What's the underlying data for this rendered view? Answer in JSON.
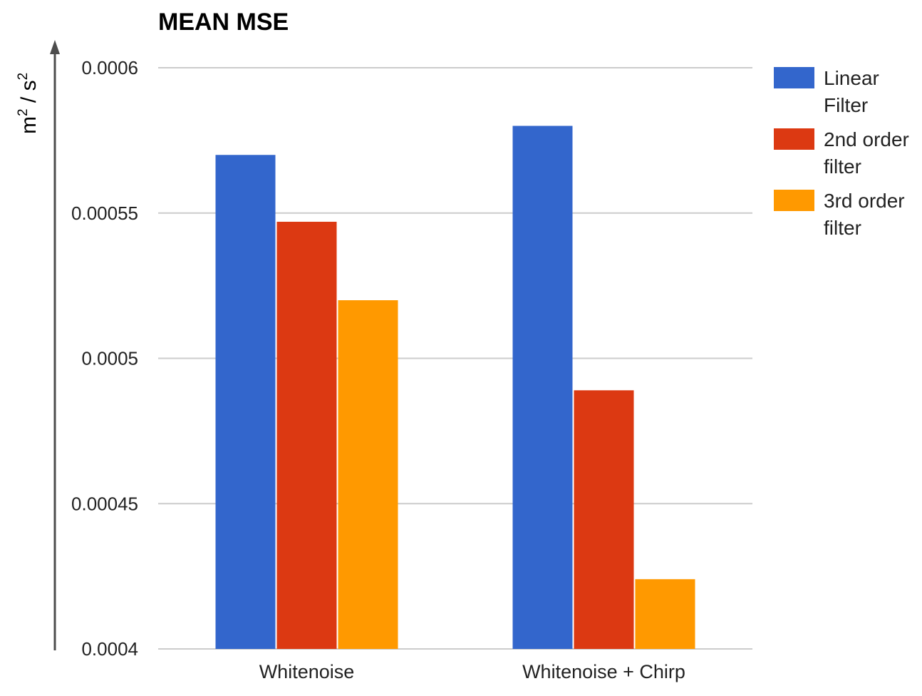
{
  "chart_data": {
    "type": "bar",
    "title": "MEAN MSE",
    "ylabel_base": "m",
    "ylabel_sup": "2",
    "ylabel_sep": " / s",
    "ylabel_sup2": "2",
    "ylabel": "m2 / s2",
    "xlabel": "",
    "ylim": [
      0.0004,
      0.0006
    ],
    "yticks": [
      {
        "value": 0.0004,
        "label": "0.0004"
      },
      {
        "value": 0.00045,
        "label": "0.00045"
      },
      {
        "value": 0.0005,
        "label": "0.0005"
      },
      {
        "value": 0.00055,
        "label": "0.00055"
      },
      {
        "value": 0.0006,
        "label": "0.0006"
      }
    ],
    "categories": [
      "Whitenoise",
      "Whitenoise + Chirp"
    ],
    "series": [
      {
        "name": "Linear Filter",
        "legend_lines": [
          "Linear",
          "Filter"
        ],
        "color": "#3366cc",
        "values": [
          0.00057,
          0.00058
        ]
      },
      {
        "name": "2nd order filter",
        "legend_lines": [
          "2nd order",
          "filter"
        ],
        "color": "#dc3912",
        "values": [
          0.000547,
          0.000489
        ]
      },
      {
        "name": "3rd order filter",
        "legend_lines": [
          "3rd order",
          "filter"
        ],
        "color": "#ff9900",
        "values": [
          0.00052,
          0.000424
        ]
      }
    ],
    "grid": true,
    "legend_position": "right"
  }
}
